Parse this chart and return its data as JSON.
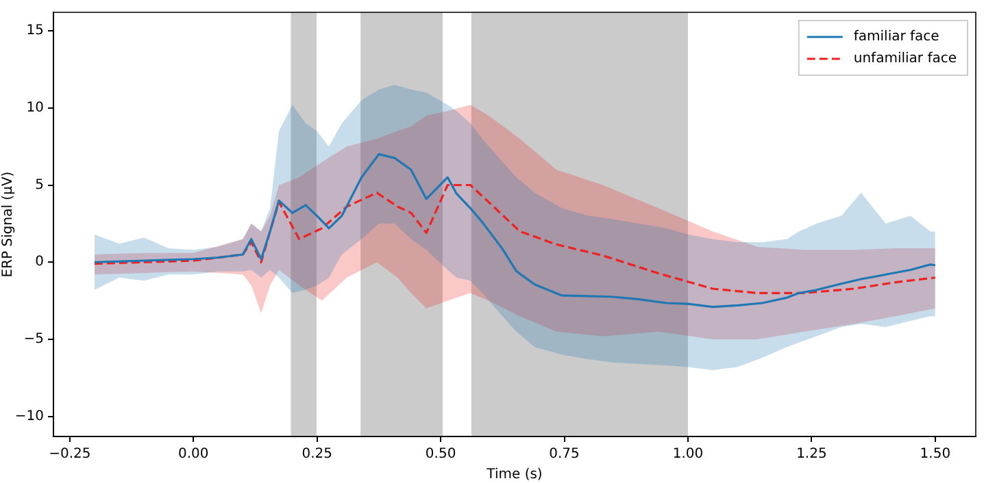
{
  "chart_data": {
    "type": "line",
    "xlabel": "Time (s)",
    "ylabel": "ERP Signal (μV)",
    "xlim": [
      -0.283,
      1.582
    ],
    "ylim": [
      -11.3,
      16.2
    ],
    "xticks": [
      {
        "value": -0.25,
        "label": "−0.25"
      },
      {
        "value": 0,
        "label": "0.00"
      },
      {
        "value": 0.25,
        "label": "0.25"
      },
      {
        "value": 0.5,
        "label": "0.50"
      },
      {
        "value": 0.75,
        "label": "0.75"
      },
      {
        "value": 1,
        "label": "1.00"
      },
      {
        "value": 1.25,
        "label": "1.25"
      },
      {
        "value": 1.5,
        "label": "1.50"
      }
    ],
    "yticks": [
      {
        "value": -10,
        "label": "−10"
      },
      {
        "value": -5,
        "label": "−5"
      },
      0,
      5,
      10,
      15
    ],
    "grid": false,
    "legend": "top right",
    "marker": "none",
    "bands": [
      {
        "axis": "x",
        "from": 0.197,
        "to": 0.249,
        "color": "#a0a0a0"
      },
      {
        "axis": "x",
        "from": 0.338,
        "to": 0.504,
        "color": "#a0a0a0"
      },
      {
        "axis": "x",
        "from": 0.562,
        "to": 1.0,
        "color": "#a0a0a0"
      }
    ],
    "series": [
      {
        "name": "familiar face",
        "color": "#1f77b4",
        "line_style": "solid",
        "x": [
          -0.2,
          -0.15,
          -0.1,
          -0.05,
          0,
          0.05,
          0.1,
          0.117,
          0.137,
          0.155,
          0.173,
          0.2,
          0.227,
          0.25,
          0.274,
          0.3,
          0.34,
          0.375,
          0.407,
          0.44,
          0.471,
          0.514,
          0.532,
          0.56,
          0.584,
          0.625,
          0.653,
          0.69,
          0.745,
          0.8,
          0.846,
          0.9,
          0.957,
          1.0,
          1.05,
          1.1,
          1.15,
          1.2,
          1.225,
          1.26,
          1.31,
          1.35,
          1.4,
          1.45,
          1.49,
          1.5
        ],
        "values": [
          0,
          0.05,
          0.1,
          0.15,
          0.2,
          0.3,
          0.5,
          1.5,
          0.2,
          2.0,
          4.0,
          3.2,
          3.7,
          3.0,
          2.2,
          3.0,
          5.5,
          7.0,
          6.75,
          6.0,
          4.1,
          5.5,
          4.45,
          3.5,
          2.6,
          0.86,
          -0.58,
          -1.44,
          -2.16,
          -2.2,
          -2.24,
          -2.4,
          -2.65,
          -2.7,
          -2.9,
          -2.8,
          -2.65,
          -2.3,
          -2.0,
          -1.8,
          -1.4,
          -1.1,
          -0.8,
          -0.5,
          -0.15,
          -0.2
        ],
        "upper": [
          1.8,
          1.2,
          1.6,
          0.9,
          0.8,
          1.0,
          1.5,
          2.5,
          2.0,
          3.5,
          8.5,
          10.2,
          9.0,
          8.5,
          7.5,
          9.0,
          10.5,
          11.2,
          11.5,
          11.2,
          11.0,
          10.2,
          9.8,
          9.0,
          8.0,
          6.5,
          5.5,
          4.5,
          3.5,
          3.0,
          2.8,
          2.5,
          2.2,
          1.8,
          1.5,
          1.3,
          1.3,
          1.5,
          2.0,
          2.5,
          3.0,
          4.5,
          2.5,
          3.0,
          2.0,
          2.0
        ],
        "lower": [
          -1.8,
          -1.0,
          -1.2,
          -0.8,
          -0.8,
          -0.6,
          -0.6,
          -0.5,
          -1.0,
          -0.5,
          -1.0,
          -2.0,
          -1.8,
          -1.5,
          -1.0,
          0.5,
          1.5,
          2.5,
          2.5,
          1.5,
          0.8,
          -0.5,
          -1.0,
          -1.2,
          -2.0,
          -3.5,
          -4.5,
          -5.5,
          -6.0,
          -6.3,
          -6.5,
          -6.6,
          -6.7,
          -6.8,
          -7.0,
          -6.8,
          -6.2,
          -5.5,
          -5.2,
          -4.8,
          -4.2,
          -4.0,
          -4.2,
          -3.8,
          -3.5,
          -3.5
        ]
      },
      {
        "name": "unfamiliar face",
        "color": "#ee2222",
        "line_style": "dashed",
        "x": [
          -0.2,
          -0.1,
          0,
          0.1,
          0.117,
          0.137,
          0.155,
          0.173,
          0.214,
          0.26,
          0.31,
          0.371,
          0.413,
          0.44,
          0.471,
          0.514,
          0.56,
          0.597,
          0.66,
          0.734,
          0.828,
          0.94,
          1.05,
          1.14,
          1.235,
          1.335,
          1.42,
          1.5
        ],
        "values": [
          -0.1,
          0.0,
          0.1,
          0.5,
          1.3,
          0.0,
          2.0,
          3.9,
          1.5,
          2.2,
          3.6,
          4.5,
          3.6,
          3.2,
          1.9,
          5.0,
          5.0,
          3.9,
          2.0,
          1.15,
          0.43,
          -0.72,
          -1.72,
          -2.0,
          -2.0,
          -1.72,
          -1.3,
          -1.0
        ],
        "upper": [
          0.5,
          0.6,
          0.6,
          1.5,
          2.5,
          2.0,
          3.0,
          5.0,
          5.5,
          6.5,
          7.5,
          8.0,
          8.5,
          8.8,
          9.5,
          9.8,
          10.2,
          9.5,
          8.0,
          6.0,
          5.0,
          3.5,
          2.0,
          1.0,
          0.8,
          0.8,
          0.9,
          0.9
        ],
        "lower": [
          -0.8,
          -0.7,
          -0.6,
          -0.8,
          -1.5,
          -3.3,
          -1.5,
          -0.5,
          -1.5,
          -2.5,
          -1.0,
          0.0,
          -1.0,
          -2.0,
          -3.0,
          -2.5,
          -2.0,
          -2.5,
          -3.5,
          -4.5,
          -4.8,
          -4.5,
          -5.0,
          -5.0,
          -4.5,
          -4.0,
          -3.5,
          -3.0
        ]
      }
    ]
  }
}
